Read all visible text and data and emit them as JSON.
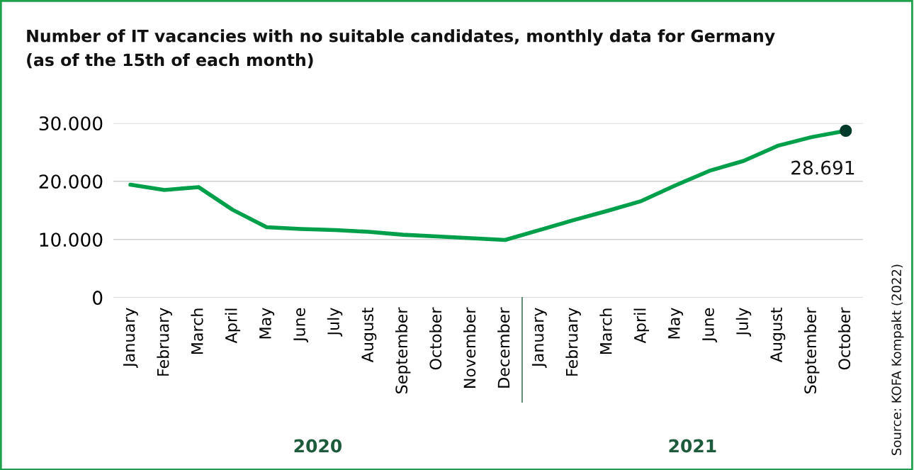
{
  "chart_data": {
    "type": "line",
    "title": "Number of IT vacancies with no suitable candidates, monthly data for Germany\n(as of the 15th of each month)",
    "categories": [
      "January",
      "February",
      "March",
      "April",
      "May",
      "June",
      "July",
      "August",
      "September",
      "October",
      "November",
      "December",
      "January",
      "February",
      "March",
      "April",
      "May",
      "June",
      "July",
      "August",
      "September",
      "October"
    ],
    "series": [
      {
        "color": "#00a04a",
        "values": [
          19400,
          18500,
          19000,
          15100,
          12100,
          11800,
          11600,
          11300,
          10800,
          10500,
          10200,
          9900,
          11600,
          13300,
          14900,
          16600,
          19300,
          21800,
          23500,
          26100,
          27600,
          28691
        ]
      },
      {
        "type": "scatter",
        "color": "#003a2a",
        "marker": "circle",
        "values": [
          null,
          null,
          null,
          null,
          null,
          null,
          null,
          null,
          null,
          null,
          null,
          null,
          null,
          null,
          null,
          null,
          null,
          null,
          null,
          null,
          null,
          28691
        ],
        "value_labels": [
          null,
          null,
          null,
          null,
          null,
          null,
          null,
          null,
          null,
          null,
          null,
          null,
          null,
          null,
          null,
          null,
          null,
          null,
          null,
          null,
          null,
          "28.691"
        ]
      }
    ],
    "ylim": [
      0,
      30000
    ],
    "yticks": [
      {
        "value": 0,
        "label": "0"
      },
      {
        "value": 10000,
        "label": "10.000"
      },
      {
        "value": 20000,
        "label": "20.000"
      },
      {
        "value": 30000,
        "label": "30.000"
      }
    ],
    "grid": "y",
    "annotations": [
      "2020",
      "2021",
      "Source: KOFA Kompakt (2022)"
    ]
  }
}
